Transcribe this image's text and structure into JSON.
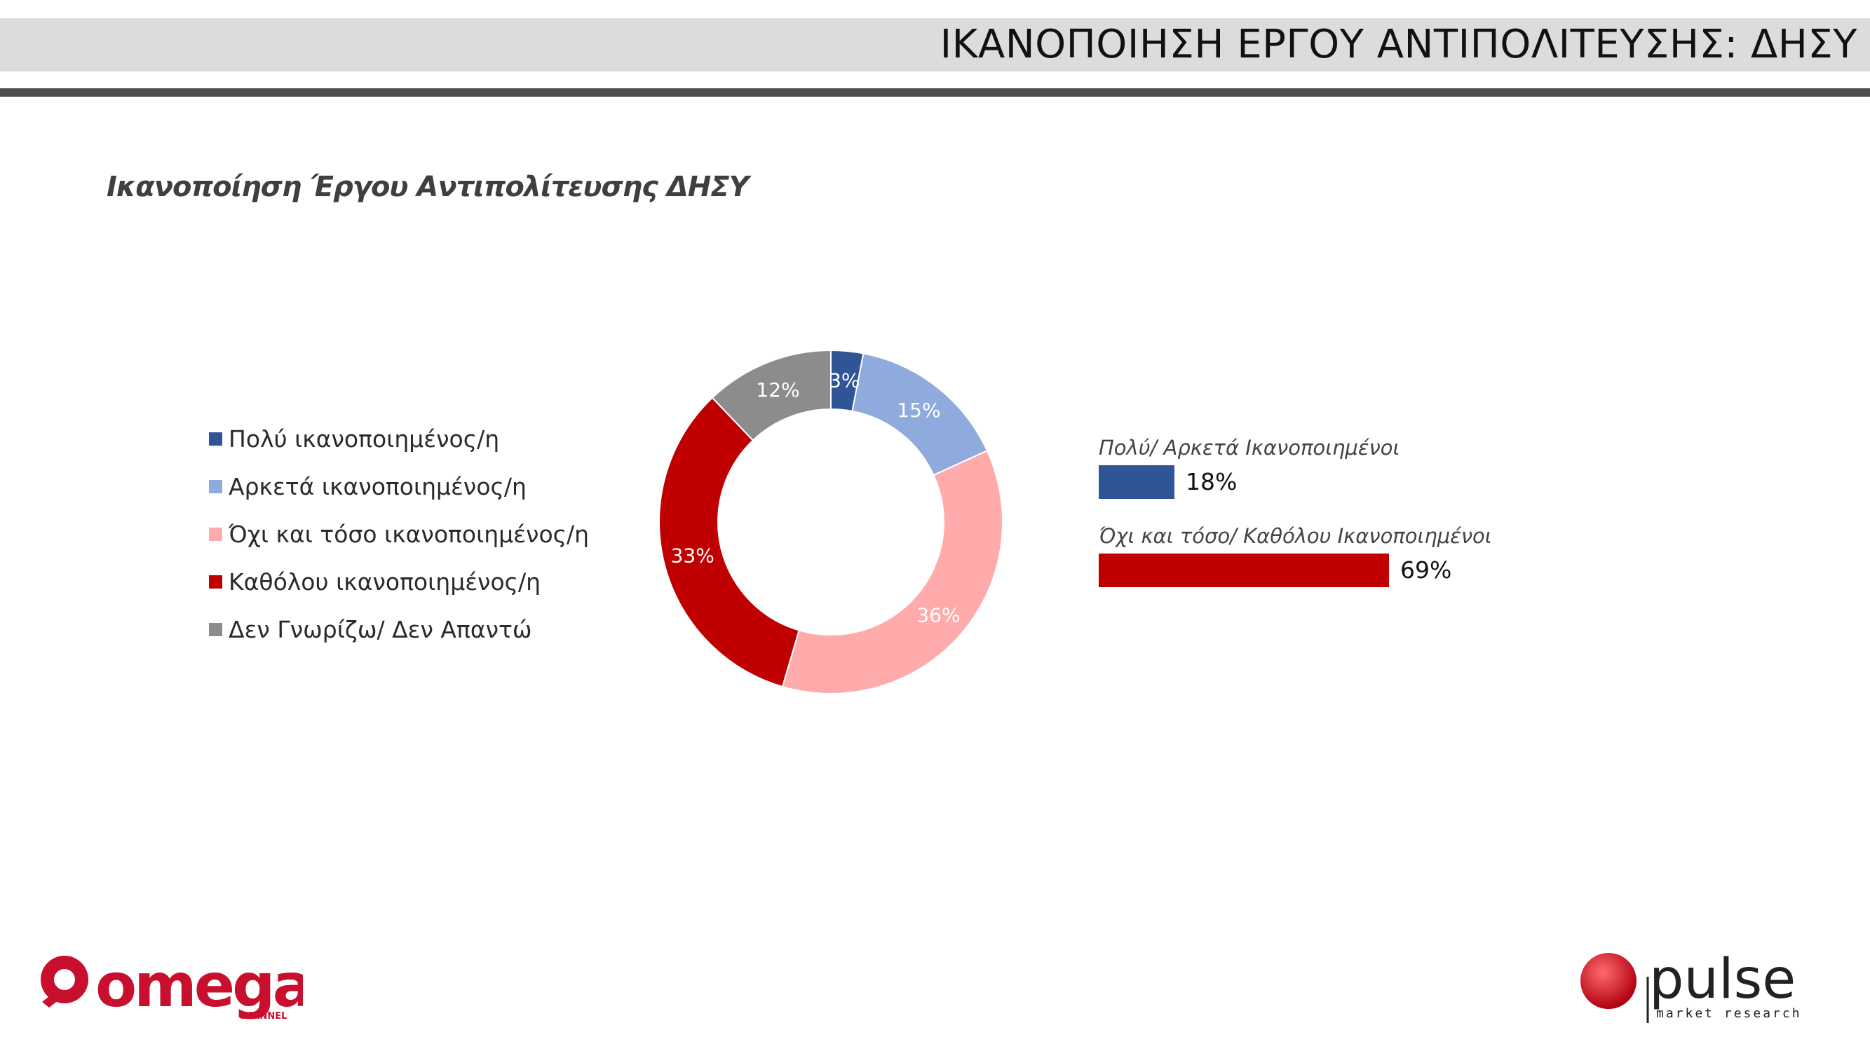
{
  "header": {
    "title": "ΙΚΑΝΟΠΟΙΗΣΗ ΕΡΓΟΥ ΑΝΤΙΠΟΛΙΤΕΥΣΗΣ: ΔΗΣΥ"
  },
  "chart_data": [
    {
      "type": "pie",
      "variant": "donut",
      "title": "Ικανοποίηση Έργου Αντιπολίτευσης ΔΗΣΥ",
      "legend_position": "left",
      "labels": [
        "Πολύ ικανοποιημένος/η",
        "Αρκετά ικανοποιημένος/η",
        "Όχι και τόσο ικανοποιημένος/η",
        "Καθόλου ικανοποιημένος/η",
        "Δεν Γνωρίζω/ Δεν Απαντώ"
      ],
      "values": [
        3,
        15,
        36,
        33,
        12
      ],
      "value_labels": [
        "3%",
        "15%",
        "36%",
        "33%",
        "12%"
      ],
      "colors": [
        "#2f5597",
        "#8faadc",
        "#ffabab",
        "#c00000",
        "#8c8c8c"
      ]
    },
    {
      "type": "bar",
      "orientation": "horizontal",
      "categories": [
        "Πολύ/ Αρκετά Ικανοποιημένοι",
        "Όχι και τόσο/ Καθόλου Ικανοποιημένοι"
      ],
      "values": [
        18,
        69
      ],
      "value_labels": [
        "18%",
        "69%"
      ],
      "colors": [
        "#2f5597",
        "#c00000"
      ],
      "xlim": [
        0,
        100
      ]
    }
  ],
  "logos": {
    "omega": {
      "wordmark": "omega",
      "sub": "CHANNEL",
      "color": "#c8102e"
    },
    "pulse": {
      "wordmark": "pulse",
      "sub": "market research",
      "color": "#222222",
      "dot_color": "#d0021b"
    }
  }
}
